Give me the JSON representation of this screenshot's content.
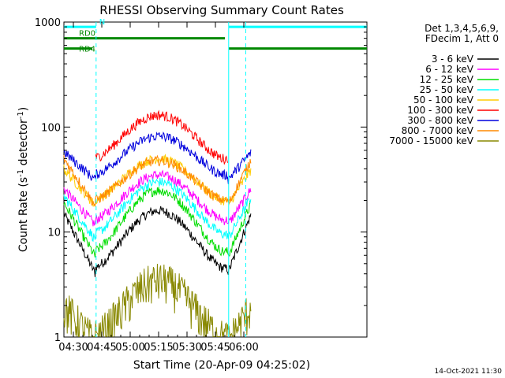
{
  "chart_data": {
    "type": "line",
    "title": "RHESSI Observing Summary Count Rates",
    "xlabel": "Start Time (20-Apr-09 04:25:02)",
    "ylabel_prefix": "Count Rate (s",
    "ylabel_sup": "-1",
    "ylabel_suffix": " detector",
    "ylabel_end": ")",
    "yscale": "log",
    "xlim_min": [
      25,
      185
    ],
    "ylim": [
      1,
      1000
    ],
    "x_ticks": [
      {
        "m": 30,
        "label": "04:30"
      },
      {
        "m": 45,
        "label": "04:45"
      },
      {
        "m": 60,
        "label": "05:00"
      },
      {
        "m": 75,
        "label": "05:15"
      },
      {
        "m": 90,
        "label": "05:30"
      },
      {
        "m": 105,
        "label": "05:45"
      },
      {
        "m": 120,
        "label": "06:00"
      }
    ],
    "y_ticks": [
      {
        "v": 1,
        "label": "1"
      },
      {
        "v": 10,
        "label": "10"
      },
      {
        "v": 100,
        "label": "100"
      },
      {
        "v": 1000,
        "label": "1000"
      }
    ],
    "legend_header": [
      "Det 1,3,4,5,6,9,",
      "FDecim 1, Att 0"
    ],
    "series": [
      {
        "name": "3 - 6 keV",
        "color": "#000000",
        "night": 4.5,
        "peak": 16,
        "edge": 15
      },
      {
        "name": "6 - 12 keV",
        "color": "#ff00ff",
        "night": 13,
        "peak": 35,
        "edge": 26
      },
      {
        "name": "12 - 25 keV",
        "color": "#00dd00",
        "night": 6.5,
        "peak": 25,
        "edge": 19
      },
      {
        "name": "25 - 50 keV",
        "color": "#00ffff",
        "night": 9.5,
        "peak": 30,
        "edge": 22
      },
      {
        "name": "50 - 100 keV",
        "color": "#ffcc00",
        "night": 20,
        "peak": 50,
        "edge": 40
      },
      {
        "name": "100 - 300 keV",
        "color": "#ff0000",
        "night": 50,
        "peak": 130,
        "edge": 0
      },
      {
        "name": "300 - 800 keV",
        "color": "#0000dd",
        "night": 35,
        "peak": 82,
        "edge": 58
      },
      {
        "name": "800 - 7000 keV",
        "color": "#ff8800",
        "night": 20,
        "peak": 48,
        "edge": 50
      },
      {
        "name": "7000 - 15000 keV",
        "color": "#888800",
        "night": 1,
        "peak": 3.5,
        "edge": 2
      }
    ],
    "flags": [
      {
        "label": "N",
        "color": "#00ffff",
        "start": 25,
        "end": 42,
        "start2": 112,
        "end2": 185,
        "level": 900
      },
      {
        "label": "RD0",
        "color": "#008800",
        "start": 25,
        "end": 110,
        "start2": 0,
        "end2": 0,
        "level": 700
      },
      {
        "label": "RD4",
        "color": "#008800",
        "start": 25,
        "end": 40,
        "start2": 112,
        "end2": 185,
        "level": 560
      }
    ],
    "vlines": [
      42,
      112,
      121
    ],
    "timestamp": "14-Oct-2021 11:30"
  }
}
